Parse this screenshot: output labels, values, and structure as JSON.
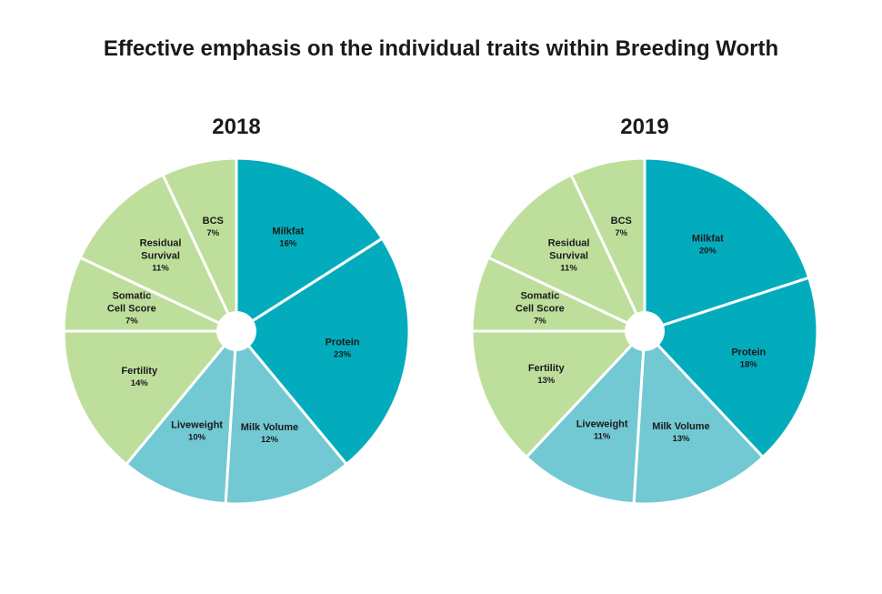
{
  "title": "Effective emphasis on the individual traits within Breeding Worth",
  "colors": {
    "teal": "#03acbd",
    "light_blue": "#72c9d3",
    "light_green": "#bedf9c",
    "separator": "#ffffff"
  },
  "chart_data": [
    {
      "type": "pie",
      "title": "2018",
      "slices": [
        {
          "label": "Milkfat",
          "value": 16,
          "value_label": "16%",
          "color": "#03acbd"
        },
        {
          "label": "Protein",
          "value": 23,
          "value_label": "23%",
          "color": "#03acbd"
        },
        {
          "label": "Milk Volume",
          "value": 12,
          "value_label": "12%",
          "color": "#72c9d3"
        },
        {
          "label": "Liveweight",
          "value": 10,
          "value_label": "10%",
          "color": "#72c9d3"
        },
        {
          "label": "Fertility",
          "value": 14,
          "value_label": "14%",
          "color": "#bedf9c"
        },
        {
          "label": "Somatic Cell Score",
          "value": 7,
          "value_label": "7%",
          "color": "#bedf9c"
        },
        {
          "label": "Residual Survival",
          "value": 11,
          "value_label": "11%",
          "color": "#bedf9c"
        },
        {
          "label": "BCS",
          "value": 7,
          "value_label": "7%",
          "color": "#bedf9c"
        }
      ]
    },
    {
      "type": "pie",
      "title": "2019",
      "slices": [
        {
          "label": "Milkfat",
          "value": 20,
          "value_label": "20%",
          "color": "#03acbd"
        },
        {
          "label": "Protein",
          "value": 18,
          "value_label": "18%",
          "color": "#03acbd"
        },
        {
          "label": "Milk Volume",
          "value": 13,
          "value_label": "13%",
          "color": "#72c9d3"
        },
        {
          "label": "Liveweight",
          "value": 11,
          "value_label": "11%",
          "color": "#72c9d3"
        },
        {
          "label": "Fertility",
          "value": 13,
          "value_label": "13%",
          "color": "#bedf9c"
        },
        {
          "label": "Somatic Cell Score",
          "value": 7,
          "value_label": "7%",
          "color": "#bedf9c"
        },
        {
          "label": "Residual Survival",
          "value": 11,
          "value_label": "11%",
          "color": "#bedf9c"
        },
        {
          "label": "BCS",
          "value": 7,
          "value_label": "7%",
          "color": "#bedf9c"
        }
      ]
    }
  ]
}
